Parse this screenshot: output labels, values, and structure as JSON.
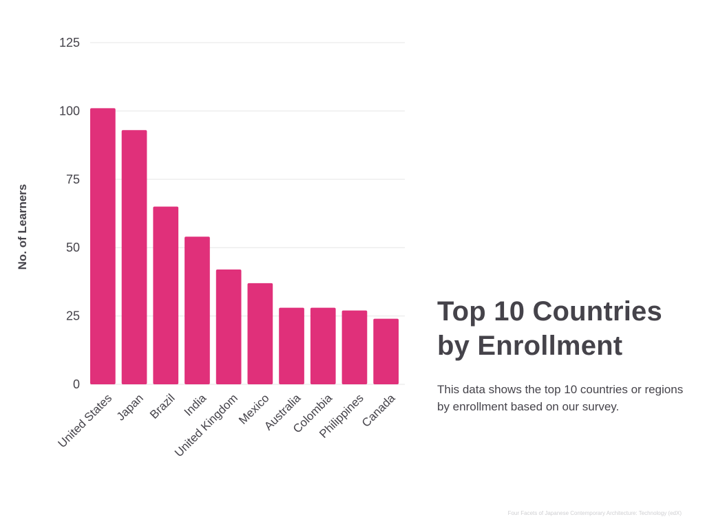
{
  "title": "Top 10 Countries by Enrollment",
  "description": "This data shows the top 10 countries or regions by enrollment based on our survey.",
  "footer": "Four Facets of Japanese Contemporary Architecture: Technology (edX)",
  "colors": {
    "bar": "#e0307a",
    "text": "#45434a",
    "grid": "#e6e6e6"
  },
  "chart_data": {
    "type": "bar",
    "categories": [
      "United States",
      "Japan",
      "Brazil",
      "India",
      "United Kingdom",
      "Mexico",
      "Australia",
      "Colombia",
      "Philippines",
      "Canada"
    ],
    "values": [
      101,
      93,
      65,
      54,
      42,
      37,
      28,
      28,
      27,
      24
    ],
    "ylabel": "No. of Learners",
    "xlabel": "",
    "ylim": [
      0,
      125
    ],
    "yticks": [
      0,
      25,
      50,
      75,
      100,
      125
    ],
    "grid": true
  }
}
